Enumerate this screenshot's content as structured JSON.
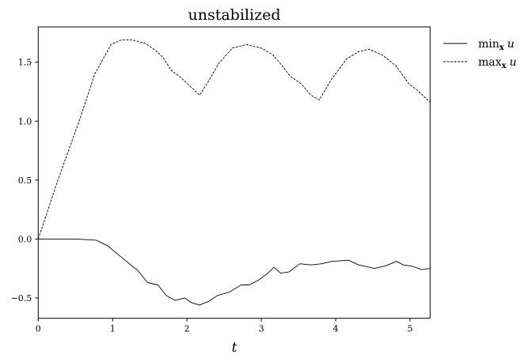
{
  "chart_data": {
    "type": "line",
    "title": "unstabilized",
    "xlabel": "t",
    "ylabel": "",
    "xlim": [
      0,
      5.27
    ],
    "ylim": [
      -0.673,
      1.8
    ],
    "xticks": [
      0,
      1,
      2,
      3,
      4,
      5
    ],
    "xtick_labels": [
      "0",
      "1",
      "2",
      "3",
      "4",
      "5"
    ],
    "yticks": [
      -0.5,
      0.0,
      0.5,
      1.0,
      1.5
    ],
    "ytick_labels": [
      "−0.5",
      "0.0",
      "0.5",
      "1.0",
      "1.5"
    ],
    "grid": false,
    "legend_placement": "outside-top-right",
    "series": [
      {
        "name": "min_x u",
        "legend_main": "min",
        "legend_sub": "x",
        "legend_var": "u",
        "style": "solid",
        "color": "#000000",
        "x": [
          0,
          0.51,
          0.78,
          0.94,
          1.05,
          1.17,
          1.28,
          1.33,
          1.47,
          1.61,
          1.72,
          1.84,
          1.97,
          2.06,
          2.17,
          2.29,
          2.41,
          2.57,
          2.73,
          2.84,
          2.96,
          3.09,
          3.17,
          3.26,
          3.37,
          3.52,
          3.67,
          3.81,
          3.95,
          4.17,
          4.31,
          4.52,
          4.66,
          4.82,
          4.91,
          5.02,
          5.16,
          5.27
        ],
        "y": [
          0,
          0,
          -0.01,
          -0.06,
          -0.12,
          -0.18,
          -0.24,
          -0.26,
          -0.37,
          -0.39,
          -0.48,
          -0.52,
          -0.5,
          -0.54,
          -0.56,
          -0.53,
          -0.48,
          -0.45,
          -0.39,
          -0.39,
          -0.35,
          -0.29,
          -0.24,
          -0.29,
          -0.28,
          -0.21,
          -0.22,
          -0.21,
          -0.19,
          -0.18,
          -0.22,
          -0.25,
          -0.23,
          -0.19,
          -0.22,
          -0.23,
          -0.26,
          -0.25
        ]
      },
      {
        "name": "max_x u",
        "legend_main": "max",
        "legend_sub": "x",
        "legend_var": "u",
        "style": "dashed",
        "color": "#000000",
        "x": [
          0,
          0.27,
          0.55,
          0.76,
          0.98,
          1.12,
          1.26,
          1.44,
          1.58,
          1.68,
          1.79,
          1.9,
          2.02,
          2.17,
          2.29,
          2.43,
          2.61,
          2.8,
          3.0,
          3.16,
          3.28,
          3.39,
          3.53,
          3.67,
          3.78,
          3.95,
          4.15,
          4.31,
          4.45,
          4.63,
          4.81,
          4.98,
          5.12,
          5.27
        ],
        "y": [
          0,
          0.51,
          1.0,
          1.4,
          1.65,
          1.69,
          1.69,
          1.66,
          1.6,
          1.54,
          1.43,
          1.38,
          1.31,
          1.22,
          1.34,
          1.49,
          1.62,
          1.65,
          1.62,
          1.56,
          1.47,
          1.38,
          1.32,
          1.22,
          1.18,
          1.36,
          1.53,
          1.59,
          1.61,
          1.56,
          1.47,
          1.32,
          1.25,
          1.16
        ]
      }
    ]
  }
}
